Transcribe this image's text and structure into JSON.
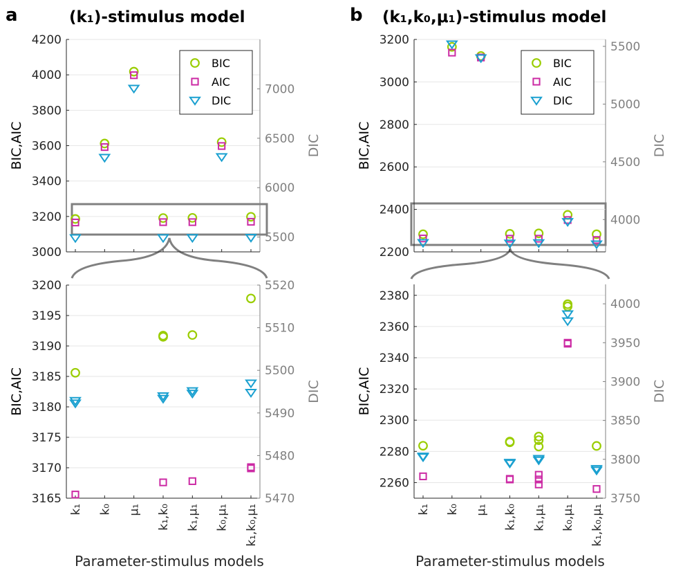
{
  "panels": [
    {
      "letter": "a",
      "title": "(k₁)-stimulus model"
    },
    {
      "letter": "b",
      "title": "(k₁,k₀,μ₁)-stimulus model"
    }
  ],
  "xlabel": "Parameter-stimulus models",
  "colors": {
    "BIC": "#9acd00",
    "AIC": "#cc2aa4",
    "DIC": "#1aa0d0"
  },
  "chart_data": [
    {
      "type": "scatter",
      "panel": "a-top",
      "categories": [
        "k₁",
        "k₀",
        "μ₁",
        "k₁,k₀",
        "k₁,μ₁",
        "k₀,μ₁",
        "k₁,k₀,μ₁"
      ],
      "ylabel": "BIC,AIC",
      "ylabel_right": "DIC",
      "ylim": [
        3000,
        4200
      ],
      "ylim_right": [
        5350,
        7500
      ],
      "yticks": [
        3000,
        3200,
        3400,
        3600,
        3800,
        4000,
        4200
      ],
      "yticks_right": [
        5500,
        6000,
        6500,
        7000
      ],
      "legend": [
        "BIC",
        "AIC",
        "DIC"
      ],
      "legend_position": "top-right",
      "series": [
        {
          "name": "BIC",
          "axis": "left",
          "points": [
            [
              0,
              3186
            ],
            [
              1,
              3612
            ],
            [
              2,
              4018
            ],
            [
              3,
              3191
            ],
            [
              4,
              3192
            ],
            [
              5,
              3620
            ],
            [
              6,
              3198
            ]
          ]
        },
        {
          "name": "AIC",
          "axis": "left",
          "points": [
            [
              0,
              3166
            ],
            [
              1,
              3592
            ],
            [
              2,
              3998
            ],
            [
              3,
              3168
            ],
            [
              4,
              3168
            ],
            [
              5,
              3598
            ],
            [
              6,
              3170
            ]
          ]
        },
        {
          "name": "DIC",
          "axis": "right",
          "points": [
            [
              0,
              5492
            ],
            [
              1,
              6305
            ],
            [
              2,
              7005
            ],
            [
              3,
              5493
            ],
            [
              4,
              5494
            ],
            [
              5,
              6312
            ],
            [
              6,
              5496
            ]
          ]
        }
      ]
    },
    {
      "type": "scatter",
      "panel": "a-bottom",
      "categories": [
        "k₁",
        "k₀",
        "μ₁",
        "k₁,k₀",
        "k₁,μ₁",
        "k₀,μ₁",
        "k₁,k₀,μ₁"
      ],
      "ylabel": "BIC,AIC",
      "ylabel_right": "DIC",
      "ylim": [
        3165,
        3200
      ],
      "ylim_right": [
        5470,
        5520
      ],
      "yticks": [
        3165,
        3170,
        3175,
        3180,
        3185,
        3190,
        3195,
        3200
      ],
      "yticks_right": [
        5470,
        5480,
        5490,
        5500,
        5510,
        5520
      ],
      "series": [
        {
          "name": "BIC",
          "axis": "left",
          "points": [
            [
              0,
              3185.6
            ],
            [
              3,
              3191.5
            ],
            [
              3,
              3191.7
            ],
            [
              4,
              3191.8
            ],
            [
              6,
              3197.8
            ]
          ]
        },
        {
          "name": "AIC",
          "axis": "left",
          "points": [
            [
              0,
              3165.6
            ],
            [
              3,
              3167.6
            ],
            [
              4,
              3167.8
            ],
            [
              6,
              3169.9
            ],
            [
              6,
              3170.1
            ]
          ]
        },
        {
          "name": "DIC",
          "axis": "right",
          "points": [
            [
              0,
              5492.3
            ],
            [
              0,
              5492.9
            ],
            [
              3,
              5493.4
            ],
            [
              3,
              5494.0
            ],
            [
              4,
              5494.6
            ],
            [
              4,
              5495.2
            ],
            [
              6,
              5494.8
            ],
            [
              6,
              5497.0
            ]
          ]
        }
      ]
    },
    {
      "type": "scatter",
      "panel": "b-top",
      "categories": [
        "k₁",
        "k₀",
        "μ₁",
        "k₁,k₀",
        "k₁,μ₁",
        "k₀,μ₁",
        "k₁,k₀,μ₁"
      ],
      "ylabel": "BIC,AIC",
      "ylabel_right": "DIC",
      "ylim": [
        2200,
        3200
      ],
      "ylim_right": [
        3720,
        5560
      ],
      "yticks": [
        2200,
        2400,
        2600,
        2800,
        3000,
        3200
      ],
      "yticks_right": [
        4000,
        4500,
        5000,
        5500
      ],
      "legend": [
        "BIC",
        "AIC",
        "DIC"
      ],
      "legend_position": "top-right",
      "series": [
        {
          "name": "BIC",
          "axis": "left",
          "points": [
            [
              0,
              2283
            ],
            [
              1,
              3165
            ],
            [
              2,
              3122
            ],
            [
              3,
              2285
            ],
            [
              4,
              2287
            ],
            [
              5,
              2374
            ],
            [
              6,
              2283
            ]
          ]
        },
        {
          "name": "AIC",
          "axis": "left",
          "points": [
            [
              0,
              2263
            ],
            [
              1,
              3138
            ],
            [
              2,
              3115
            ],
            [
              3,
              2262
            ],
            [
              4,
              2262
            ],
            [
              5,
              2350
            ],
            [
              6,
              2256
            ]
          ]
        },
        {
          "name": "DIC",
          "axis": "right",
          "points": [
            [
              0,
              3800
            ],
            [
              1,
              5520
            ],
            [
              2,
              5400
            ],
            [
              3,
              3795
            ],
            [
              4,
              3798
            ],
            [
              5,
              3982
            ],
            [
              6,
              3788
            ]
          ]
        }
      ]
    },
    {
      "type": "scatter",
      "panel": "b-bottom",
      "categories": [
        "k₁",
        "k₀",
        "μ₁",
        "k₁,k₀",
        "k₁,μ₁",
        "k₀,μ₁",
        "k₁,k₀,μ₁"
      ],
      "ylabel": "BIC,AIC",
      "ylabel_right": "DIC",
      "ylim": [
        2250,
        2387
      ],
      "ylim_right": [
        3750,
        4025
      ],
      "yticks": [
        2260,
        2280,
        2300,
        2320,
        2340,
        2360,
        2380
      ],
      "yticks_right": [
        3750,
        3800,
        3850,
        3900,
        3950,
        4000
      ],
      "series": [
        {
          "name": "BIC",
          "axis": "left",
          "points": [
            [
              0,
              2283.6
            ],
            [
              3,
              2285.8
            ],
            [
              3,
              2286.3
            ],
            [
              4,
              2283.1
            ],
            [
              4,
              2287.2
            ],
            [
              4,
              2289.5
            ],
            [
              5,
              2372.9
            ],
            [
              5,
              2374.3
            ],
            [
              6,
              2283.5
            ]
          ]
        },
        {
          "name": "AIC",
          "axis": "left",
          "points": [
            [
              0,
              2264.0
            ],
            [
              3,
              2262.0
            ],
            [
              3,
              2262.4
            ],
            [
              4,
              2258.8
            ],
            [
              4,
              2262.0
            ],
            [
              4,
              2265.0
            ],
            [
              5,
              2349.0
            ],
            [
              5,
              2349.6
            ],
            [
              6,
              2255.9
            ]
          ]
        },
        {
          "name": "DIC",
          "axis": "right",
          "points": [
            [
              0,
              3803
            ],
            [
              0,
              3804
            ],
            [
              3,
              3795
            ],
            [
              3,
              3796
            ],
            [
              4,
              3799
            ],
            [
              4,
              3801
            ],
            [
              5,
              3978
            ],
            [
              5,
              3987
            ],
            [
              6,
              3786
            ],
            [
              6,
              3788
            ]
          ]
        }
      ]
    }
  ]
}
